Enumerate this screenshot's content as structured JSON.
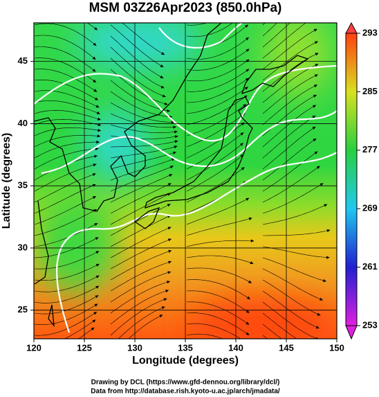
{
  "chart_data": {
    "type": "map",
    "title": "MSM 03Z26Apr2023 (850.0hPa)",
    "xlabel": "Longitude (degrees)",
    "ylabel": "Latitude  (degrees)",
    "xlim": [
      120,
      150
    ],
    "xticks": [
      120,
      125,
      130,
      135,
      140,
      145,
      150
    ],
    "ylim": [
      22.7,
      48.1
    ],
    "yticks": [
      25,
      30,
      35,
      40,
      45
    ],
    "grid": true,
    "colorbar": {
      "lim": [
        253,
        293
      ],
      "ticks": [
        253,
        261,
        269,
        277,
        285,
        293
      ]
    },
    "footer": [
      "Drawing by DCL (https://www.gfd-dennou.org/library/dcl/)",
      "Data from http://database.rish.kyoto-u.ac.jp/arch/jmadata/"
    ]
  }
}
